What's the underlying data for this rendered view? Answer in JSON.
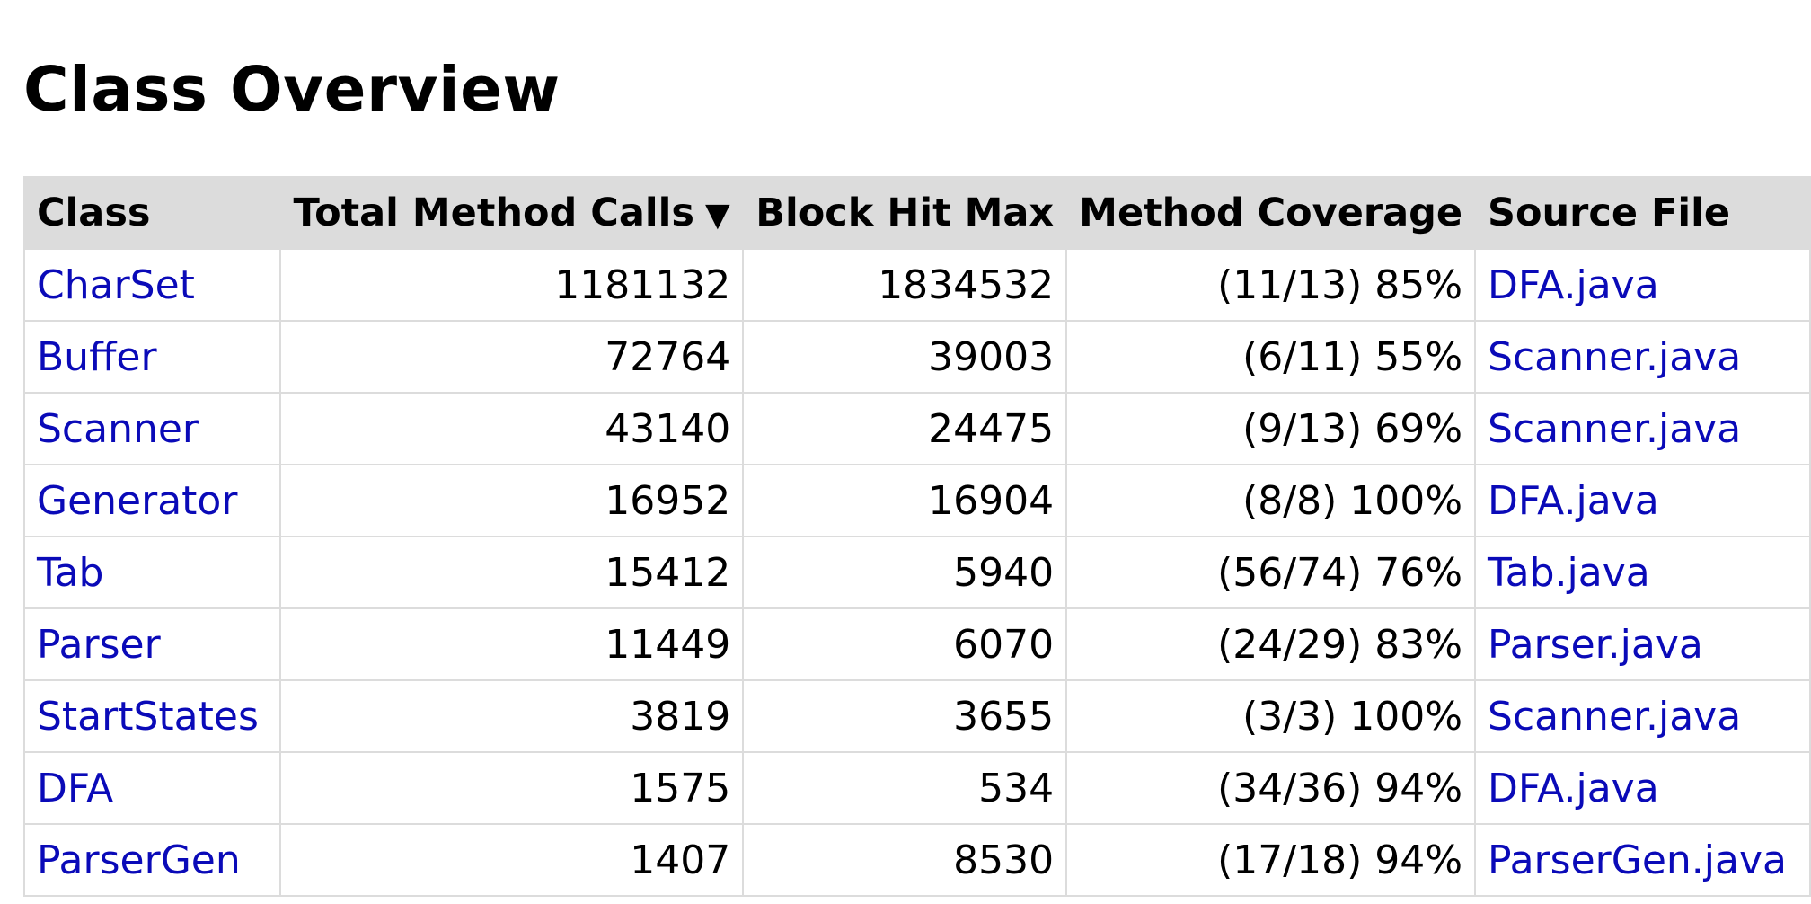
{
  "page": {
    "title": "Class Overview"
  },
  "table": {
    "headers": {
      "class": "Class",
      "calls": "Total Method Calls",
      "calls_sort": "▼",
      "hits": "Block Hit Max",
      "coverage": "Method Coverage",
      "source": "Source File"
    },
    "rows": [
      {
        "class": "CharSet",
        "calls": "1181132",
        "hits": "1834532",
        "coverage": "(11/13) 85%",
        "source": "DFA.java"
      },
      {
        "class": "Buffer",
        "calls": "72764",
        "hits": "39003",
        "coverage": "(6/11) 55%",
        "source": "Scanner.java"
      },
      {
        "class": "Scanner",
        "calls": "43140",
        "hits": "24475",
        "coverage": "(9/13) 69%",
        "source": "Scanner.java"
      },
      {
        "class": "Generator",
        "calls": "16952",
        "hits": "16904",
        "coverage": "(8/8) 100%",
        "source": "DFA.java"
      },
      {
        "class": "Tab",
        "calls": "15412",
        "hits": "5940",
        "coverage": "(56/74) 76%",
        "source": "Tab.java"
      },
      {
        "class": "Parser",
        "calls": "11449",
        "hits": "6070",
        "coverage": "(24/29) 83%",
        "source": "Parser.java"
      },
      {
        "class": "StartStates",
        "calls": "3819",
        "hits": "3655",
        "coverage": "(3/3) 100%",
        "source": "Scanner.java"
      },
      {
        "class": "DFA",
        "calls": "1575",
        "hits": "534",
        "coverage": "(34/36) 94%",
        "source": "DFA.java"
      },
      {
        "class": "ParserGen",
        "calls": "1407",
        "hits": "8530",
        "coverage": "(17/18) 94%",
        "source": "ParserGen.java"
      }
    ]
  },
  "colors": {
    "link": "#0a0ab8",
    "header_bg": "#dcdcdc",
    "grid": "#dcdcdc"
  }
}
